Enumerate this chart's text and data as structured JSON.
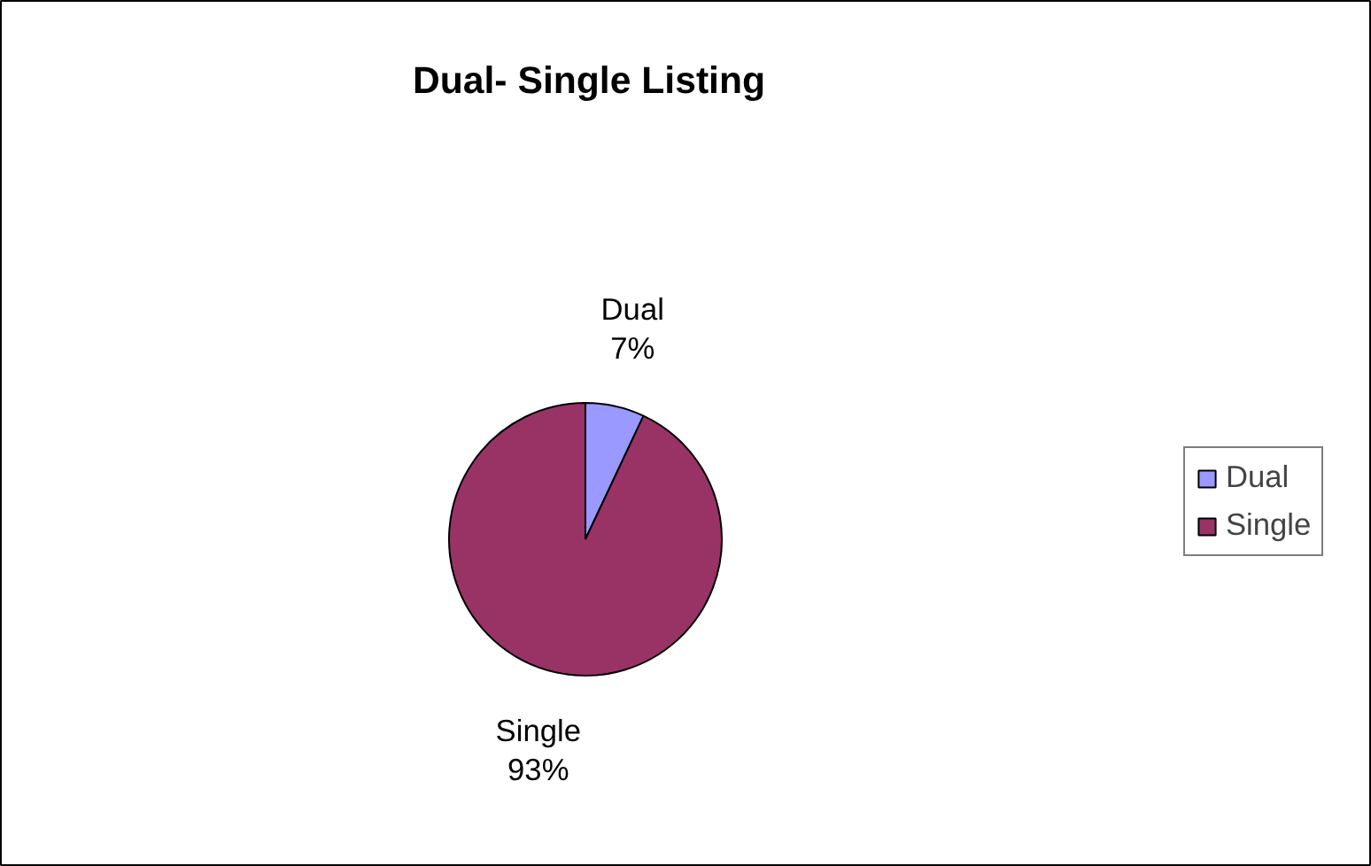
{
  "chart_data": {
    "type": "pie",
    "title": "Dual- Single Listing",
    "categories": [
      "Dual",
      "Single"
    ],
    "values": [
      7,
      93
    ],
    "colors": [
      "#9999ff",
      "#993366"
    ],
    "value_labels": [
      "7%",
      "93%"
    ],
    "legend": "right"
  }
}
